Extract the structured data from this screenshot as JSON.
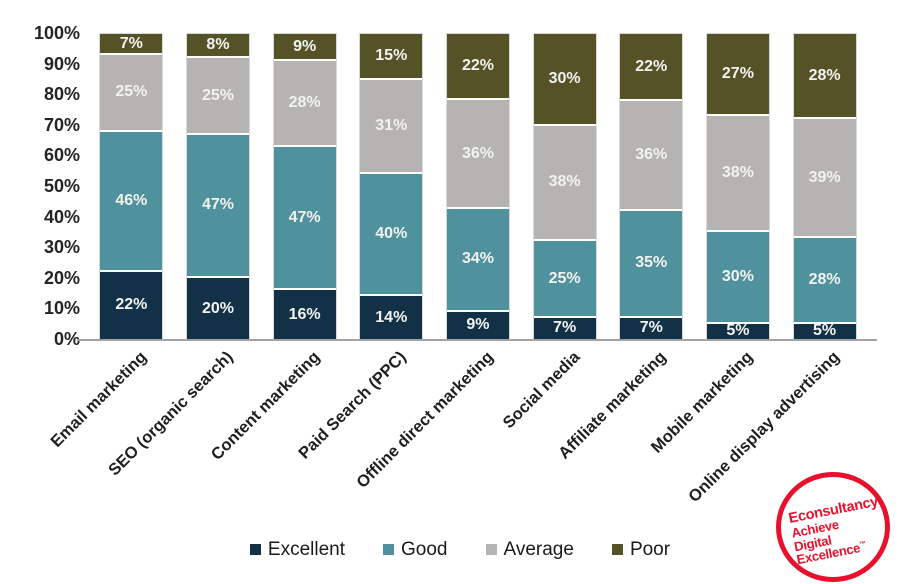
{
  "chart_data": {
    "type": "bar",
    "stacked": true,
    "stack_total": "100%",
    "title": "",
    "xlabel": "",
    "ylabel": "",
    "grid": false,
    "legend_position": "bottom",
    "value_suffix": "%",
    "categories": [
      "Email marketing",
      "SEO (organic search)",
      "Content marketing",
      "Paid Search (PPC)",
      "Offline direct marketing",
      "Social media",
      "Affiliate marketing",
      "Mobile marketing",
      "Online display advertising"
    ],
    "series": [
      {
        "name": "Excellent",
        "color": "#133146",
        "values": [
          22,
          20,
          16,
          14,
          9,
          7,
          7,
          5,
          5
        ]
      },
      {
        "name": "Good",
        "color": "#4f919c",
        "values": [
          46,
          47,
          47,
          40,
          34,
          25,
          35,
          30,
          28
        ]
      },
      {
        "name": "Average",
        "color": "#b5b4b3",
        "values": [
          25,
          25,
          28,
          31,
          36,
          38,
          36,
          38,
          39
        ]
      },
      {
        "name": "Poor",
        "color": "#565227",
        "values": [
          7,
          8,
          9,
          15,
          22,
          30,
          22,
          27,
          28
        ]
      }
    ],
    "y_axis": {
      "min": 0,
      "max": 100,
      "tick_step": 10,
      "ticks": [
        "0%",
        "10%",
        "20%",
        "30%",
        "40%",
        "50%",
        "60%",
        "70%",
        "80%",
        "90%",
        "100%"
      ]
    }
  },
  "legend": {
    "items": [
      "Excellent",
      "Good",
      "Average",
      "Poor"
    ]
  },
  "logo": {
    "brand": "Econsultancy",
    "tagline": [
      "Achieve",
      "Digital",
      "Excellence"
    ],
    "trademark": "™",
    "color": "#e8112d"
  }
}
